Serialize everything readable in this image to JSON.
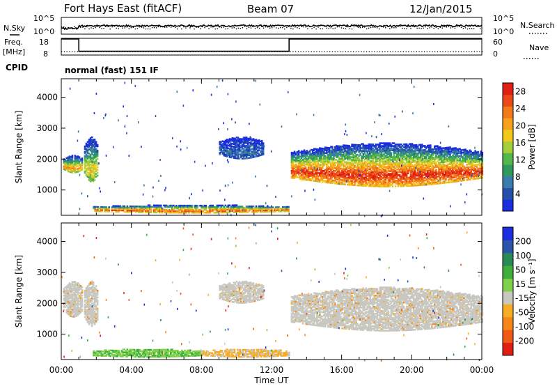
{
  "header": {
    "title": "Fort Hays East (fitACF)",
    "beam": "Beam 07",
    "date": "12/Jan/2015"
  },
  "noise_panel": {
    "left_label": "N.Sky",
    "right_label": "N.Search",
    "left_ticks": [
      "10^5",
      "10^0"
    ],
    "right_ticks": [
      "10^5",
      "10^0"
    ]
  },
  "freq_panel": {
    "left_label_1": "Freq.",
    "left_label_2": "[MHz]",
    "right_label": "Nave",
    "left_ticks": [
      "18",
      "8"
    ],
    "right_ticks": [
      "60",
      "0"
    ]
  },
  "cpid": {
    "label": "CPID",
    "text": "normal (fast) 151 IF"
  },
  "colors": {
    "power_scale": [
      "#1a2ee0",
      "#264fa8",
      "#3a7cae",
      "#2f9a5e",
      "#55b64c",
      "#a4cf3a",
      "#f2c81d",
      "#f5a11c",
      "#f27a1a",
      "#ea4a17",
      "#e01f14"
    ],
    "velocity_scale": [
      "#e01f14",
      "#f05a17",
      "#f5871a",
      "#f6ad25",
      "#c8c8c0",
      "#7fd04a",
      "#3fae3a",
      "#2a8a55",
      "#2b55a8",
      "#1a2ee0"
    ],
    "velocity_ground": "#c8c8c0"
  },
  "chart_data": [
    {
      "type": "heatmap",
      "title": "",
      "xlabel": "Time UT",
      "ylabel": "Slant Range [km]",
      "x_ticks": [
        "00:00",
        "04:00",
        "08:00",
        "12:00",
        "16:00",
        "20:00",
        "00:00"
      ],
      "y_ticks": [
        1000,
        2000,
        3000,
        4000
      ],
      "xlim_hours": [
        0,
        24
      ],
      "ylim": [
        180,
        4600
      ],
      "colorbar": {
        "label": "Power [dB]",
        "ticks": [
          4,
          8,
          12,
          16,
          20,
          24,
          28
        ],
        "range": [
          0,
          30
        ]
      },
      "regions": [
        {
          "t0": 0.1,
          "t1": 1.2,
          "r_min": 1550,
          "r_max": 2100,
          "peak_dB": 22
        },
        {
          "t0": 1.3,
          "t1": 2.1,
          "r_min": 1250,
          "r_max": 2700,
          "peak_dB": 18
        },
        {
          "t0": 1.8,
          "t1": 13.0,
          "r_min": 250,
          "r_max": 500,
          "peak_dB": 26
        },
        {
          "t0": 9.0,
          "t1": 11.5,
          "r_min": 2000,
          "r_max": 2700,
          "peak_dB": 6
        },
        {
          "t0": 13.1,
          "t1": 24.0,
          "r_min": 1100,
          "r_max": 2500,
          "peak_dB": 28
        }
      ]
    },
    {
      "type": "heatmap",
      "title": "",
      "xlabel": "Time UT",
      "ylabel": "Slant Range [km]",
      "x_ticks": [
        "00:00",
        "04:00",
        "08:00",
        "12:00",
        "16:00",
        "20:00",
        "00:00"
      ],
      "y_ticks": [
        1000,
        2000,
        3000,
        4000
      ],
      "xlim_hours": [
        0,
        24
      ],
      "ylim": [
        180,
        4600
      ],
      "colorbar": {
        "label": "Velocity [m s⁻¹]",
        "ticks": [
          200,
          100,
          50,
          15,
          -15,
          -50,
          -100,
          -200
        ],
        "range": [
          -250,
          250
        ]
      },
      "regions": [
        {
          "t0": 0.1,
          "t1": 1.2,
          "r_min": 1550,
          "r_max": 2700,
          "velocity": 0,
          "ground": true
        },
        {
          "t0": 1.3,
          "t1": 2.1,
          "r_min": 1250,
          "r_max": 2700,
          "velocity": 0,
          "ground": true
        },
        {
          "t0": 1.8,
          "t1": 8.0,
          "r_min": 250,
          "r_max": 500,
          "velocity": 40
        },
        {
          "t0": 8.0,
          "t1": 13.0,
          "r_min": 250,
          "r_max": 500,
          "velocity": -60
        },
        {
          "t0": 9.0,
          "t1": 11.5,
          "r_min": 2000,
          "r_max": 2700,
          "velocity": 0,
          "ground": true
        },
        {
          "t0": 13.1,
          "t1": 24.0,
          "r_min": 1100,
          "r_max": 2500,
          "velocity": 0,
          "ground": true
        }
      ]
    },
    {
      "type": "line",
      "title": "",
      "xlabel": "",
      "ylabel": "Freq. [MHz]",
      "x": [
        0,
        1.0,
        1.0,
        13.0,
        13.0,
        24.0
      ],
      "series": [
        {
          "values": [
            18,
            18,
            10,
            10,
            18,
            18
          ]
        }
      ],
      "ylim": [
        8,
        18
      ]
    },
    {
      "type": "line",
      "title": "",
      "xlabel": "",
      "ylabel": "N.Sky",
      "x": [
        0,
        1.0,
        1.0,
        24.0
      ],
      "series": [
        {
          "values": [
            10,
            10,
            30,
            30
          ]
        }
      ]
    }
  ],
  "axes": {
    "xlabel": "Time UT",
    "ylabel_top": "Slant Range [km]",
    "ylabel_bottom": "Slant Range [km]",
    "x_ticks": [
      "00:00",
      "04:00",
      "08:00",
      "12:00",
      "16:00",
      "20:00",
      "00:00"
    ],
    "y_ticks": [
      "1000",
      "2000",
      "3000",
      "4000"
    ],
    "power_label": "Power [dB]",
    "velocity_label": "Velocity [m s⁻¹]",
    "power_ticks": [
      "4",
      "8",
      "12",
      "16",
      "20",
      "24",
      "28"
    ],
    "velocity_ticks": [
      "200",
      "100",
      "50",
      "15",
      "-15",
      "-50",
      "-100",
      "-200"
    ]
  }
}
